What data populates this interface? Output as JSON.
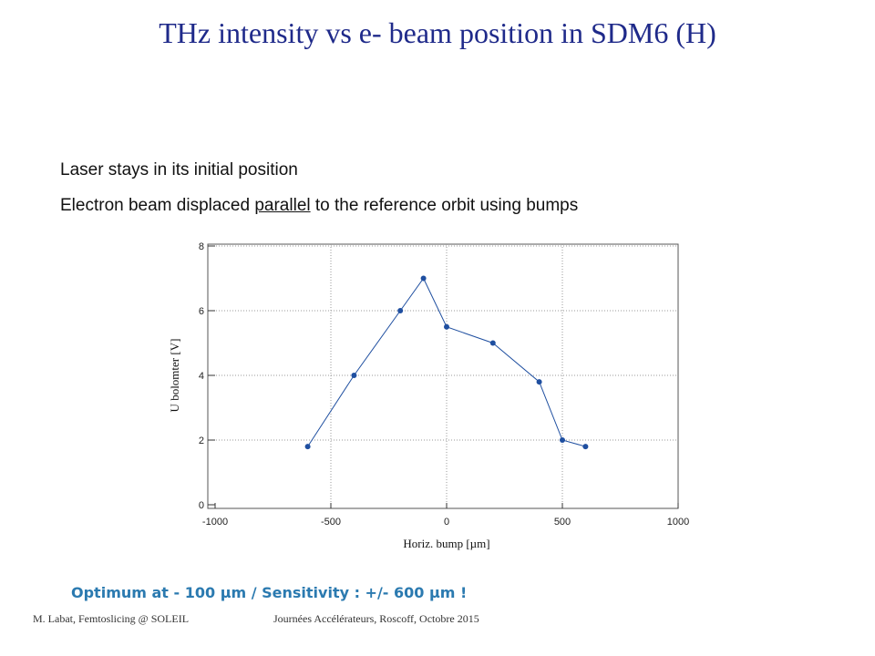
{
  "slide": {
    "title": "THz intensity vs e- beam position in SDM6 (H)",
    "bullets": {
      "line1": "Laser stays in its initial position",
      "line2_pre": "Electron beam displaced ",
      "line2_underlined": "parallel",
      "line2_post": " to the reference orbit using bumps"
    },
    "note": "Optimum at - 100 µm / Sensitivity : +/- 600 µm !",
    "footer_left": "M. Labat, Femtoslicing @ SOLEIL",
    "footer_right": "Journées Accélérateurs, Roscoff, Octobre 2015"
  },
  "colors": {
    "title": "#1f2a8a",
    "series": "#1f4fa0",
    "note": "#2b7ab0"
  },
  "chart_data": {
    "type": "line",
    "xlabel": "Horiz. bump [µm]",
    "ylabel": "U bolomter [V]",
    "xlim": [
      -1000,
      1000
    ],
    "ylim": [
      0,
      8
    ],
    "xticks": [
      -1000,
      -500,
      0,
      500,
      1000
    ],
    "yticks": [
      0,
      2,
      4,
      6,
      8
    ],
    "grid": true,
    "series": [
      {
        "x": [
          -600,
          -400,
          -200,
          -100,
          0,
          200,
          400,
          500,
          600
        ],
        "y": [
          1.8,
          4.0,
          6.0,
          7.0,
          5.5,
          5.0,
          3.8,
          2.0,
          1.8
        ]
      }
    ]
  }
}
